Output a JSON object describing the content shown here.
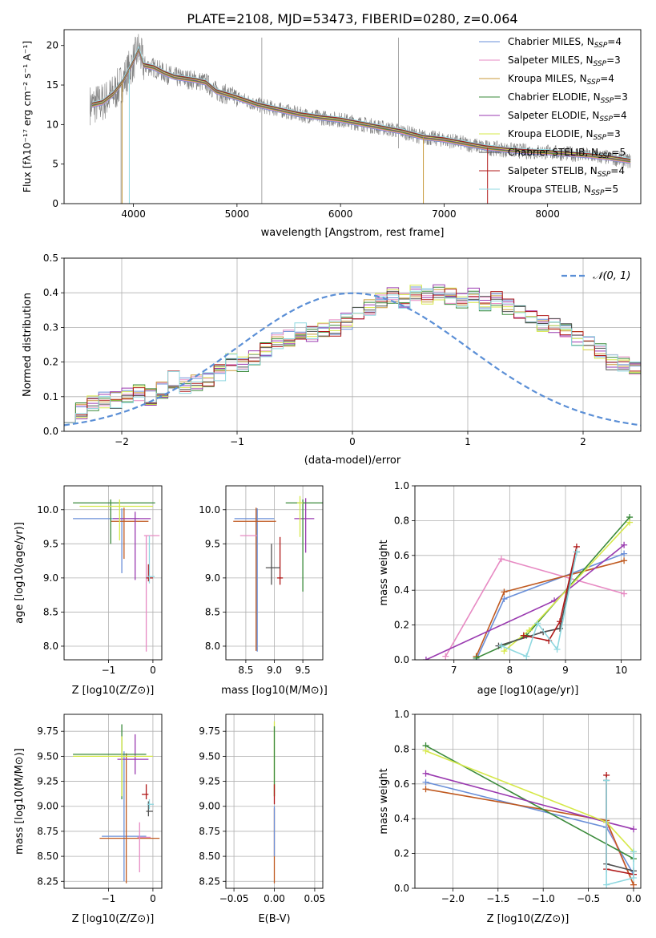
{
  "title": "PLATE=2108, MJD=53473, FIBERID=0280, z=0.064",
  "colors": [
    "#6a8fd8",
    "#e78ac3",
    "#c89a3a",
    "#3a8a3a",
    "#9a3ab0",
    "#d6e84a",
    "#505050",
    "#b01818",
    "#8fd8e0"
  ],
  "chart_data": [
    {
      "type": "line",
      "title": "PLATE=2108, MJD=53473, FIBERID=0280, z=0.064",
      "xlabel": "wavelength [Angstrom, rest frame]",
      "ylabel": "Flux [fλ10⁻¹⁷ erg cm⁻² s⁻¹ A⁻¹]",
      "xlim": [
        3330,
        8900
      ],
      "ylim": [
        0,
        22
      ],
      "xticks": [
        4000,
        5000,
        6000,
        7000,
        8000
      ],
      "yticks": [
        0,
        5,
        10,
        15,
        20
      ],
      "grid": false,
      "legend_position": "top-right",
      "legend": [
        {
          "label": "Chabrier MILES, N",
          "sub": "SSP",
          "suffix": "=4"
        },
        {
          "label": "Salpeter MILES, N",
          "sub": "SSP",
          "suffix": "=3"
        },
        {
          "label": "Kroupa MILES, N",
          "sub": "SSP",
          "suffix": "=4"
        },
        {
          "label": "Chabrier ELODIE, N",
          "sub": "SSP",
          "suffix": "=3"
        },
        {
          "label": "Salpeter ELODIE, N",
          "sub": "SSP",
          "suffix": "=4"
        },
        {
          "label": "Kroupa ELODIE, N",
          "sub": "SSP",
          "suffix": "=3"
        },
        {
          "label": "Chabrier STELIB, N",
          "sub": "SSP",
          "suffix": "=5"
        },
        {
          "label": "Salpeter STELIB, N",
          "sub": "SSP",
          "suffix": "=4"
        },
        {
          "label": "Kroupa STELIB, N",
          "sub": "SSP",
          "suffix": "=5"
        }
      ],
      "model_flux": {
        "x": [
          3600,
          3700,
          3800,
          3900,
          4000,
          4050,
          4100,
          4200,
          4300,
          4400,
          4500,
          4600,
          4700,
          4800,
          4900,
          5000,
          5200,
          5400,
          5600,
          5800,
          6000,
          6200,
          6400,
          6600,
          6800,
          7000,
          7200,
          7400,
          7600,
          7800,
          8000,
          8200,
          8400,
          8600,
          8800
        ],
        "y": [
          12.5,
          12.8,
          13.8,
          15.5,
          18.0,
          19.5,
          17.5,
          17.2,
          16.5,
          16.0,
          15.8,
          15.6,
          15.3,
          14.2,
          13.8,
          13.4,
          12.5,
          11.9,
          11.3,
          10.9,
          10.6,
          10.1,
          9.6,
          9.1,
          8.4,
          8.1,
          7.6,
          7.1,
          6.8,
          6.6,
          6.5,
          6.3,
          6.1,
          5.8,
          5.4
        ]
      },
      "data_flux_note": "grey observed spectrum, noisy about the model curve"
    },
    {
      "type": "step",
      "xlabel": "(data-model)/error",
      "ylabel": "Normed distribution",
      "xlim": [
        -2.5,
        2.5
      ],
      "ylim": [
        0,
        0.5
      ],
      "xticks": [
        -2,
        -1,
        0,
        1,
        2
      ],
      "yticks": [
        0.0,
        0.1,
        0.2,
        0.3,
        0.4,
        0.5
      ],
      "grid": true,
      "legend_position": "top-right",
      "legend": [
        {
          "label": "𝒩(0, 1)"
        }
      ],
      "bin_width": 0.1,
      "bins_start": -2.5,
      "histogram_mean": [
        0.05,
        0.06,
        0.08,
        0.09,
        0.09,
        0.1,
        0.11,
        0.1,
        0.12,
        0.15,
        0.13,
        0.14,
        0.15,
        0.17,
        0.2,
        0.19,
        0.21,
        0.24,
        0.26,
        0.27,
        0.29,
        0.28,
        0.29,
        0.3,
        0.32,
        0.34,
        0.36,
        0.38,
        0.39,
        0.38,
        0.4,
        0.39,
        0.4,
        0.39,
        0.38,
        0.39,
        0.37,
        0.38,
        0.36,
        0.35,
        0.33,
        0.31,
        0.31,
        0.29,
        0.27,
        0.25,
        0.23,
        0.2,
        0.19,
        0.18,
        0.16,
        0.14,
        0.13,
        0.12,
        0.11,
        0.1,
        0.09,
        0.08,
        0.07,
        0.07,
        0.06,
        0.05,
        0.05,
        0.04,
        0.04,
        0.03,
        0.03,
        0.03,
        0.03,
        0.02,
        0.02
      ],
      "normal_curve": {
        "mean": 0,
        "sigma": 1
      }
    },
    {
      "type": "errorbar",
      "xlabel": "Z [log10(Z/Z⊙)]",
      "ylabel": "age  [log10(age/yr)]",
      "xlim": [
        -2.0,
        0.2
      ],
      "ylim": [
        7.8,
        10.35
      ],
      "xticks": [
        -1,
        0
      ],
      "yticks": [
        8.0,
        8.5,
        9.0,
        9.5,
        10.0
      ],
      "grid": true,
      "points": [
        {
          "x": -0.7,
          "y": 9.87,
          "xerr": [
            1.1,
            0.4
          ],
          "yerr": [
            0.8,
            0.15
          ],
          "color": "#6a8fd8"
        },
        {
          "x": -0.65,
          "y": 9.83,
          "xerr": [
            0.3,
            0.55
          ],
          "yerr": [
            0.55,
            0.2
          ],
          "color": "#c05a20"
        },
        {
          "x": -0.15,
          "y": 9.62,
          "xerr": [
            0.05,
            0.3
          ],
          "yerr": [
            1.7,
            0.0
          ],
          "color": "#e78ac3"
        },
        {
          "x": -0.4,
          "y": 9.87,
          "xerr": [
            0.5,
            0.35
          ],
          "yerr": [
            0.9,
            0.1
          ],
          "color": "#9a3ab0"
        },
        {
          "x": -0.95,
          "y": 10.1,
          "xerr": [
            0.85,
            1.0
          ],
          "yerr": [
            0.6,
            0.05
          ],
          "color": "#3a8a3a"
        },
        {
          "x": -0.75,
          "y": 10.05,
          "xerr": [
            0.9,
            0.75
          ],
          "yerr": [
            0.5,
            0.1
          ],
          "color": "#d6e84a"
        },
        {
          "x": -0.1,
          "y": 9.0,
          "xerr": [
            0.05,
            0.1
          ],
          "yerr": [
            0.05,
            0.2
          ],
          "color": "#b01818"
        },
        {
          "x": -0.08,
          "y": 9.02,
          "xerr": [
            0.05,
            0.12
          ],
          "yerr": [
            0.1,
            0.6
          ],
          "color": "#8fd8e0"
        }
      ]
    },
    {
      "type": "errorbar",
      "xlabel": "mass [log10(M/M⊙)]",
      "ylabel": "",
      "xlim": [
        8.15,
        9.85
      ],
      "ylim": [
        7.8,
        10.35
      ],
      "xticks": [
        8.5,
        9.0,
        9.5
      ],
      "yticks": [
        8.0,
        8.5,
        9.0,
        9.5,
        10.0
      ],
      "grid": true,
      "points": [
        {
          "x": 8.7,
          "y": 9.87,
          "xerr": [
            0.4,
            0.3
          ],
          "yerr": [
            1.95,
            0.15
          ],
          "color": "#6a8fd8"
        },
        {
          "x": 8.68,
          "y": 9.83,
          "xerr": [
            0.4,
            0.35
          ],
          "yerr": [
            1.9,
            0.2
          ],
          "color": "#c05a20"
        },
        {
          "x": 8.55,
          "y": 9.62,
          "xerr": [
            0.15,
            0.15
          ],
          "yerr": [
            0.0,
            0.0
          ],
          "color": "#e78ac3"
        },
        {
          "x": 9.55,
          "y": 9.87,
          "xerr": [
            0.2,
            0.15
          ],
          "yerr": [
            0.5,
            0.3
          ],
          "color": "#9a3ab0"
        },
        {
          "x": 9.5,
          "y": 10.1,
          "xerr": [
            0.3,
            0.35
          ],
          "yerr": [
            1.3,
            0.05
          ],
          "color": "#3a8a3a"
        },
        {
          "x": 9.45,
          "y": 10.1,
          "xerr": [
            0.05,
            0.05
          ],
          "yerr": [
            0.5,
            0.1
          ],
          "color": "#d6e84a"
        },
        {
          "x": 9.1,
          "y": 9.0,
          "xerr": [
            0.05,
            0.05
          ],
          "yerr": [
            0.1,
            0.6
          ],
          "color": "#b01818"
        },
        {
          "x": 8.95,
          "y": 9.15,
          "xerr": [
            0.1,
            0.15
          ],
          "yerr": [
            0.25,
            0.35
          ],
          "color": "#505050"
        }
      ]
    },
    {
      "type": "line",
      "xlabel": "age  [log10(age/yr)]",
      "ylabel": "mass weight",
      "xlim": [
        6.3,
        10.35
      ],
      "ylim": [
        0,
        1.0
      ],
      "xticks": [
        7,
        8,
        9,
        10
      ],
      "yticks": [
        0.0,
        0.2,
        0.4,
        0.6,
        0.8,
        1.0
      ],
      "grid": true,
      "series": [
        {
          "color": "#6a8fd8",
          "x": [
            7.4,
            7.9,
            10.05
          ],
          "y": [
            0.0,
            0.35,
            0.61
          ]
        },
        {
          "color": "#e78ac3",
          "x": [
            6.85,
            7.85,
            10.05
          ],
          "y": [
            0.02,
            0.58,
            0.38
          ]
        },
        {
          "color": "#c05a20",
          "x": [
            7.4,
            7.9,
            10.05
          ],
          "y": [
            0.02,
            0.39,
            0.57
          ]
        },
        {
          "color": "#3a8a3a",
          "x": [
            7.4,
            8.3,
            10.15
          ],
          "y": [
            0.01,
            0.14,
            0.82
          ]
        },
        {
          "color": "#9a3ab0",
          "x": [
            6.5,
            8.8,
            10.05
          ],
          "y": [
            0.0,
            0.34,
            0.66
          ]
        },
        {
          "color": "#d6e84a",
          "x": [
            7.9,
            8.35,
            10.15
          ],
          "y": [
            0.05,
            0.17,
            0.79
          ]
        },
        {
          "color": "#505050",
          "x": [
            7.8,
            8.6,
            8.9,
            9.2
          ],
          "y": [
            0.08,
            0.16,
            0.18,
            0.62
          ]
        },
        {
          "color": "#b01818",
          "x": [
            8.25,
            8.7,
            8.9,
            9.2
          ],
          "y": [
            0.14,
            0.11,
            0.22,
            0.65
          ]
        },
        {
          "color": "#8fd8e0",
          "x": [
            7.85,
            8.3,
            8.5,
            8.85,
            9.2
          ],
          "y": [
            0.08,
            0.02,
            0.21,
            0.06,
            0.62
          ]
        }
      ]
    },
    {
      "type": "errorbar",
      "xlabel": "Z [log10(Z/Z⊙)]",
      "ylabel": "mass [log10(M/M⊙)]",
      "xlim": [
        -2.0,
        0.2
      ],
      "ylim": [
        8.18,
        9.92
      ],
      "xticks": [
        -1,
        0
      ],
      "yticks": [
        8.25,
        8.5,
        8.75,
        9.0,
        9.25,
        9.5,
        9.75
      ],
      "grid": true,
      "points": [
        {
          "x": -0.65,
          "y": 8.7,
          "xerr": [
            0.5,
            0.5
          ],
          "yerr": [
            0.45,
            0.85
          ],
          "color": "#6a8fd8"
        },
        {
          "x": -0.6,
          "y": 8.68,
          "xerr": [
            0.6,
            0.75
          ],
          "yerr": [
            0.45,
            0.85
          ],
          "color": "#c05a20"
        },
        {
          "x": -0.3,
          "y": 8.69,
          "xerr": [
            0.05,
            0.25
          ],
          "yerr": [
            0.35,
            0.15
          ],
          "color": "#e78ac3"
        },
        {
          "x": -0.4,
          "y": 9.47,
          "xerr": [
            0.4,
            0.3
          ],
          "yerr": [
            0.15,
            0.25
          ],
          "color": "#9a3ab0"
        },
        {
          "x": -0.7,
          "y": 9.52,
          "xerr": [
            1.1,
            0.55
          ],
          "yerr": [
            0.45,
            0.3
          ],
          "color": "#3a8a3a"
        },
        {
          "x": -0.7,
          "y": 9.5,
          "xerr": [
            1.1,
            0.7
          ],
          "yerr": [
            0.4,
            0.2
          ],
          "color": "#d6e84a"
        },
        {
          "x": -0.15,
          "y": 9.12,
          "xerr": [
            0.1,
            0.05
          ],
          "yerr": [
            0.05,
            0.1
          ],
          "color": "#b01818"
        },
        {
          "x": -0.1,
          "y": 8.95,
          "xerr": [
            0.05,
            0.1
          ],
          "yerr": [
            0.05,
            0.1
          ],
          "color": "#505050"
        },
        {
          "x": -0.08,
          "y": 9.02,
          "xerr": [
            0.05,
            0.1
          ],
          "yerr": [
            0.05,
            0.05
          ],
          "color": "#8fd8e0"
        }
      ]
    },
    {
      "type": "errorbar",
      "xlabel": "E(B-V)",
      "ylabel": "",
      "xlim": [
        -0.06,
        0.06
      ],
      "ylim": [
        8.18,
        9.92
      ],
      "xticks": [
        -0.05,
        0.0,
        0.05
      ],
      "yticks": [
        8.25,
        8.5,
        8.75,
        9.0,
        9.25,
        9.5,
        9.75
      ],
      "grid": true,
      "points": [
        {
          "x": 0.0,
          "y": 9.5,
          "xerr": [
            0,
            0
          ],
          "yerr": [
            0.4,
            0.35
          ],
          "color": "#d6e84a"
        },
        {
          "x": 0.0,
          "y": 9.5,
          "xerr": [
            0,
            0
          ],
          "yerr": [
            0.4,
            0.3
          ],
          "color": "#3a8a3a"
        },
        {
          "x": 0.0,
          "y": 9.12,
          "xerr": [
            0,
            0
          ],
          "yerr": [
            0.1,
            0.1
          ],
          "color": "#b01818"
        },
        {
          "x": 0.0,
          "y": 8.68,
          "xerr": [
            0,
            0
          ],
          "yerr": [
            0.45,
            0.3
          ],
          "color": "#c05a20"
        },
        {
          "x": 0.0,
          "y": 8.7,
          "xerr": [
            0,
            0
          ],
          "yerr": [
            0.2,
            0.3
          ],
          "color": "#6a8fd8"
        }
      ]
    },
    {
      "type": "line",
      "xlabel": "Z [log10(Z/Z⊙)]",
      "ylabel": "mass weight",
      "xlim": [
        -2.42,
        0.08
      ],
      "ylim": [
        0,
        1.0
      ],
      "xticks": [
        -2.0,
        -1.5,
        -1.0,
        -0.5,
        0.0
      ],
      "yticks": [
        0.0,
        0.2,
        0.4,
        0.6,
        0.8,
        1.0
      ],
      "grid": true,
      "series": [
        {
          "color": "#6a8fd8",
          "x": [
            -2.3,
            -0.3,
            0.0
          ],
          "y": [
            0.61,
            0.35,
            0.08
          ]
        },
        {
          "color": "#e78ac3",
          "x": [
            -0.3,
            0.0
          ],
          "y": [
            0.38,
            0.02
          ]
        },
        {
          "color": "#c05a20",
          "x": [
            -2.3,
            -0.3,
            0.0
          ],
          "y": [
            0.57,
            0.39,
            0.02
          ]
        },
        {
          "color": "#3a8a3a",
          "x": [
            -2.3,
            0.0
          ],
          "y": [
            0.82,
            0.17
          ]
        },
        {
          "color": "#9a3ab0",
          "x": [
            -2.3,
            -0.3,
            0.0
          ],
          "y": [
            0.66,
            0.38,
            0.34
          ]
        },
        {
          "color": "#d6e84a",
          "x": [
            -2.3,
            -0.3,
            0.0
          ],
          "y": [
            0.79,
            0.38,
            0.21
          ]
        },
        {
          "color": "#505050",
          "x": [
            -0.3,
            -0.3,
            0.0
          ],
          "y": [
            0.62,
            0.14,
            0.1
          ]
        },
        {
          "color": "#b01818",
          "x": [
            -0.3,
            -0.3,
            0.0
          ],
          "y": [
            0.65,
            0.11,
            0.08
          ]
        },
        {
          "color": "#8fd8e0",
          "x": [
            -0.3,
            -0.3,
            0.0,
            0.0
          ],
          "y": [
            0.62,
            0.02,
            0.06,
            0.21
          ]
        }
      ]
    }
  ]
}
